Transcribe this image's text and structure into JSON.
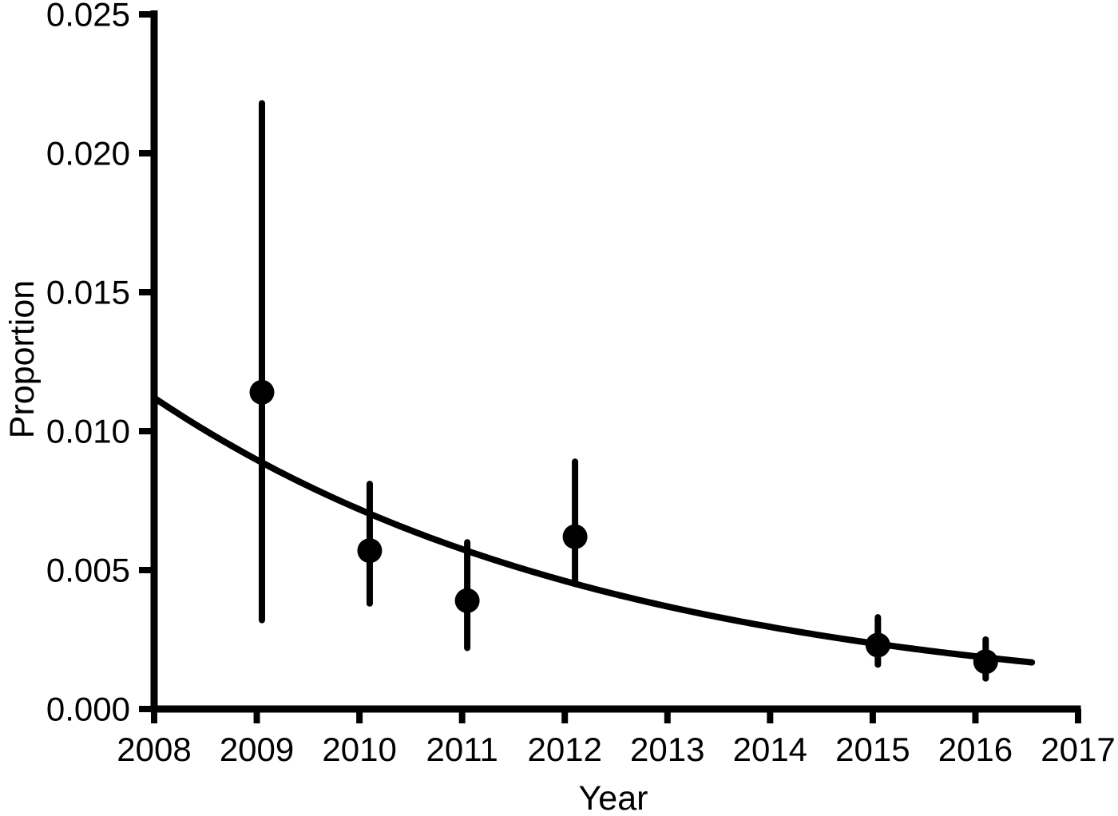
{
  "figure": {
    "background_color": "#ffffff",
    "ink_color": "#000000"
  },
  "chart_data": {
    "type": "scatter",
    "title": "",
    "xlabel": "Year",
    "ylabel": "Proportion",
    "xlim": [
      2008,
      2017
    ],
    "ylim": [
      0,
      0.025
    ],
    "grid": false,
    "legend": null,
    "x_ticks": [
      2008,
      2009,
      2010,
      2011,
      2012,
      2013,
      2014,
      2015,
      2016,
      2017
    ],
    "x_tick_labels": [
      "2008",
      "2009",
      "2010",
      "2011",
      "2012",
      "2013",
      "2014",
      "2015",
      "2016",
      "2017"
    ],
    "y_ticks": [
      0.0,
      0.005,
      0.01,
      0.015,
      0.02,
      0.025
    ],
    "y_tick_labels": [
      "0.000",
      "0.005",
      "0.010",
      "0.015",
      "0.020",
      "0.025"
    ],
    "points": [
      {
        "year": 2009,
        "x": 2009.05,
        "y": 0.0114,
        "ci_low": 0.0032,
        "ci_high": 0.0218
      },
      {
        "year": 2010,
        "x": 2010.1,
        "y": 0.0057,
        "ci_low": 0.0038,
        "ci_high": 0.0081
      },
      {
        "year": 2011,
        "x": 2011.05,
        "y": 0.0039,
        "ci_low": 0.0022,
        "ci_high": 0.006
      },
      {
        "year": 2012,
        "x": 2012.1,
        "y": 0.0062,
        "ci_low": 0.0045,
        "ci_high": 0.0089
      },
      {
        "year": 2015,
        "x": 2015.05,
        "y": 0.0023,
        "ci_low": 0.0016,
        "ci_high": 0.0033
      },
      {
        "year": 2016,
        "x": 2016.1,
        "y": 0.0017,
        "ci_low": 0.0011,
        "ci_high": 0.0025
      }
    ],
    "fit_curve": {
      "model": "exponential_decay",
      "y0": 0.0112,
      "decay_rate": 0.222,
      "t0": 2008,
      "t_start": 2008,
      "t_end": 2016.55
    },
    "style": {
      "marker": "filled-circle",
      "error_bar_caps": false
    }
  }
}
